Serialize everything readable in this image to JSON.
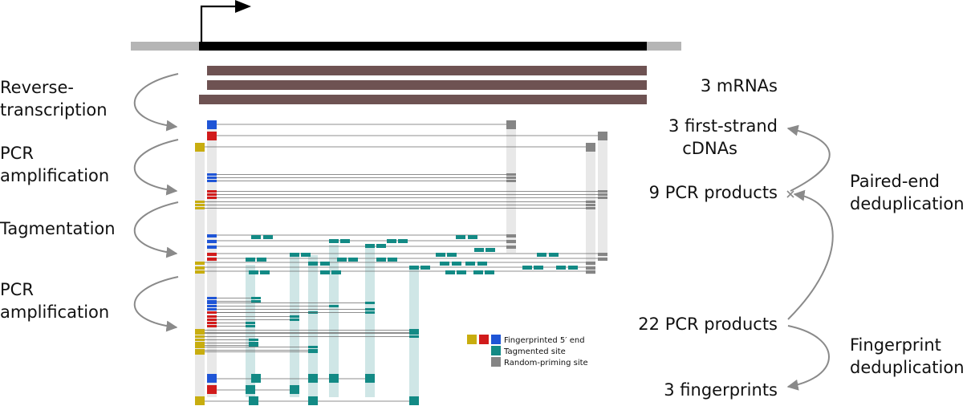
{
  "colors": {
    "blue": "#1f55d6",
    "red": "#d11b1b",
    "yellow": "#c8ad0f",
    "teal": "#138a85",
    "gray": "#858585",
    "mrna": "#6e5252",
    "gene_body": "#000000",
    "gene_flank": "#b5b5b5",
    "arrow": "#8a8a8a",
    "column_gray": "#e8e8e8",
    "column_teal": "#cfe6e6",
    "thin_line": "#6a6a6a"
  },
  "steps": [
    {
      "line1": "Reverse-",
      "line2": "transcription"
    },
    {
      "line1": "PCR",
      "line2": "amplification"
    },
    {
      "line1": "Tagmentation",
      "line2": ""
    },
    {
      "line1": "PCR",
      "line2": "amplification"
    }
  ],
  "counts": {
    "mrnas": "3 mRNAs",
    "cdna_line1": "3 first-strand",
    "cdna_line2": "cDNAs",
    "pcr9": "9 PCR products",
    "pcr22": "22 PCR products",
    "fingerprints": "3 fingerprints"
  },
  "dedup": {
    "paired_line1": "Paired-end",
    "paired_line2": "deduplication",
    "fp_line1": "Fingerprint",
    "fp_line2": "deduplication"
  },
  "legend": {
    "fingerprint": "Fingerprinted 5′ end",
    "tagmented": "Tagmented site",
    "random": "Random-priming site"
  }
}
